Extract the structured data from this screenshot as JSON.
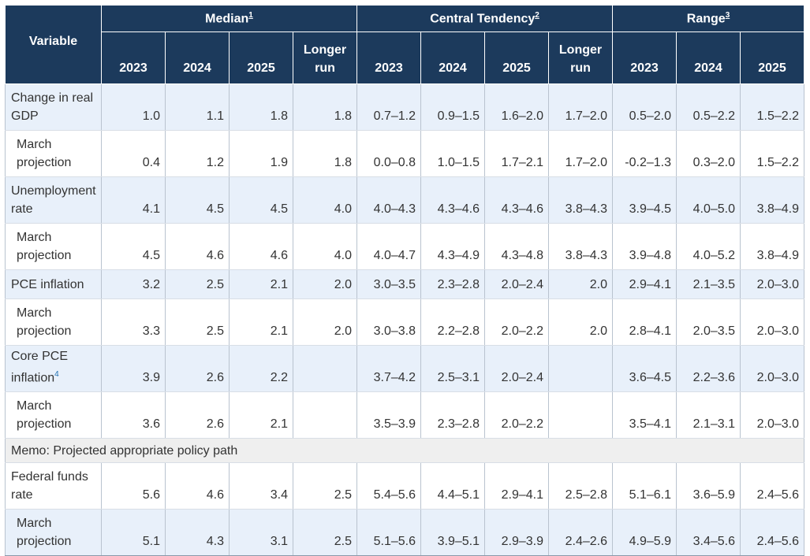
{
  "header": {
    "variable": "Variable",
    "groups": [
      {
        "label": "Median",
        "note": "1"
      },
      {
        "label": "Central Tendency",
        "note": "2"
      },
      {
        "label": "Range",
        "note": "3"
      }
    ],
    "years": [
      "2023",
      "2024",
      "2025"
    ],
    "longer_run": "Longer run"
  },
  "rows": [
    {
      "label": "Change in real GDP",
      "cells": [
        "1.0",
        "1.1",
        "1.8",
        "1.8",
        "0.7–1.2",
        "0.9–1.5",
        "1.6–2.0",
        "1.7–2.0",
        "0.5–2.0",
        "0.5–2.2",
        "1.5–2.2"
      ]
    },
    {
      "label": "March projection",
      "cells": [
        "0.4",
        "1.2",
        "1.9",
        "1.8",
        "0.0–0.8",
        "1.0–1.5",
        "1.7–2.1",
        "1.7–2.0",
        "-0.2–1.3",
        "0.3–2.0",
        "1.5–2.2"
      ]
    },
    {
      "label": "Unemployment rate",
      "cells": [
        "4.1",
        "4.5",
        "4.5",
        "4.0",
        "4.0–4.3",
        "4.3–4.6",
        "4.3–4.6",
        "3.8–4.3",
        "3.9–4.5",
        "4.0–5.0",
        "3.8–4.9"
      ]
    },
    {
      "label": "March projection",
      "cells": [
        "4.5",
        "4.6",
        "4.6",
        "4.0",
        "4.0–4.7",
        "4.3–4.9",
        "4.3–4.8",
        "3.8–4.3",
        "3.9–4.8",
        "4.0–5.2",
        "3.8–4.9"
      ]
    },
    {
      "label": "PCE inflation",
      "cells": [
        "3.2",
        "2.5",
        "2.1",
        "2.0",
        "3.0–3.5",
        "2.3–2.8",
        "2.0–2.4",
        "2.0",
        "2.9–4.1",
        "2.1–3.5",
        "2.0–3.0"
      ]
    },
    {
      "label": "March projection",
      "cells": [
        "3.3",
        "2.5",
        "2.1",
        "2.0",
        "3.0–3.8",
        "2.2–2.8",
        "2.0–2.2",
        "2.0",
        "2.8–4.1",
        "2.0–3.5",
        "2.0–3.0"
      ]
    },
    {
      "label": "Core PCE inflation",
      "note": "4",
      "cells": [
        "3.9",
        "2.6",
        "2.2",
        "",
        "3.7–4.2",
        "2.5–3.1",
        "2.0–2.4",
        "",
        "3.6–4.5",
        "2.2–3.6",
        "2.0–3.0"
      ]
    },
    {
      "label": "March projection",
      "cells": [
        "3.6",
        "2.6",
        "2.1",
        "",
        "3.5–3.9",
        "2.3–2.8",
        "2.0–2.2",
        "",
        "3.5–4.1",
        "2.1–3.1",
        "2.0–3.0"
      ]
    },
    {
      "label": "Memo: Projected appropriate policy path"
    },
    {
      "label": "Federal funds rate",
      "cells": [
        "5.6",
        "4.6",
        "3.4",
        "2.5",
        "5.4–5.6",
        "4.4–5.1",
        "2.9–4.1",
        "2.5–2.8",
        "5.1–6.1",
        "3.6–5.9",
        "2.4–5.6"
      ]
    },
    {
      "label": "March projection",
      "cells": [
        "5.1",
        "4.3",
        "3.1",
        "2.5",
        "5.1–5.6",
        "3.9–5.1",
        "2.9–3.9",
        "2.4–2.6",
        "4.9–5.9",
        "3.4–5.6",
        "2.4–5.6"
      ]
    }
  ],
  "colors": {
    "header_bg": "#1c3a5c",
    "alt_row_bg": "#e8f0fa",
    "memo_bg": "#efefef",
    "footnote_link": "#1f6fb2"
  }
}
